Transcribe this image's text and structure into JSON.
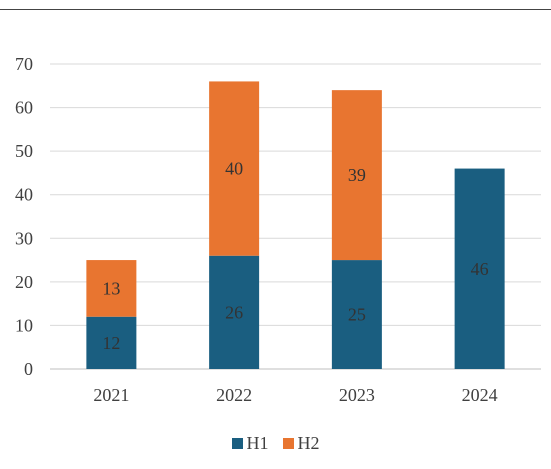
{
  "chart_data": {
    "type": "bar",
    "stacked": true,
    "categories": [
      "2021",
      "2022",
      "2023",
      "2024"
    ],
    "series": [
      {
        "name": "H1",
        "color": "#1a5e80",
        "values": [
          12,
          26,
          25,
          46
        ],
        "labels": [
          "12",
          "26",
          "25",
          "46"
        ]
      },
      {
        "name": "H2",
        "color": "#e87530",
        "values": [
          13,
          40,
          39,
          0
        ],
        "labels": [
          "13",
          "40",
          "39",
          ""
        ]
      }
    ],
    "ylim": [
      0,
      70
    ],
    "yticks": [
      "0",
      "10",
      "20",
      "30",
      "40",
      "50",
      "60",
      "70"
    ],
    "grid": true,
    "legend": "bottom-center",
    "title": "",
    "xlabel": "",
    "ylabel": ""
  }
}
